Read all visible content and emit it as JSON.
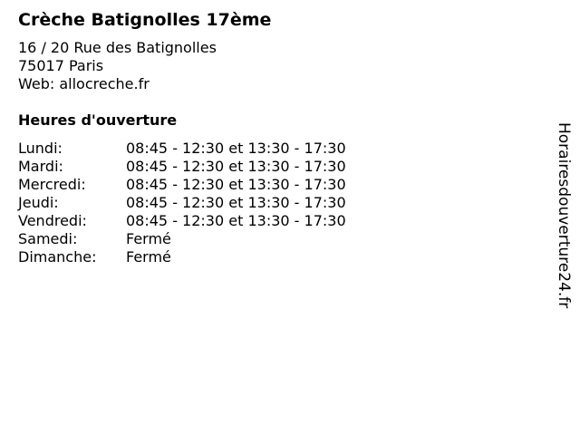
{
  "title": "Crèche Batignolles 17ème",
  "address": {
    "street": "16 / 20 Rue des Batignolles",
    "city": "75017 Paris",
    "web": "Web: allocreche.fr"
  },
  "hours_heading": "Heures d'ouverture",
  "hours": [
    {
      "day": "Lundi:",
      "time": "08:45 - 12:30 et 13:30 - 17:30"
    },
    {
      "day": "Mardi:",
      "time": "08:45 - 12:30 et 13:30 - 17:30"
    },
    {
      "day": "Mercredi:",
      "time": "08:45 - 12:30 et 13:30 - 17:30"
    },
    {
      "day": "Jeudi:",
      "time": "08:45 - 12:30 et 13:30 - 17:30"
    },
    {
      "day": "Vendredi:",
      "time": "08:45 - 12:30 et 13:30 - 17:30"
    },
    {
      "day": "Samedi:",
      "time": "Fermé"
    },
    {
      "day": "Dimanche:",
      "time": "Fermé"
    }
  ],
  "watermark": "Horairesdouverture24.fr"
}
